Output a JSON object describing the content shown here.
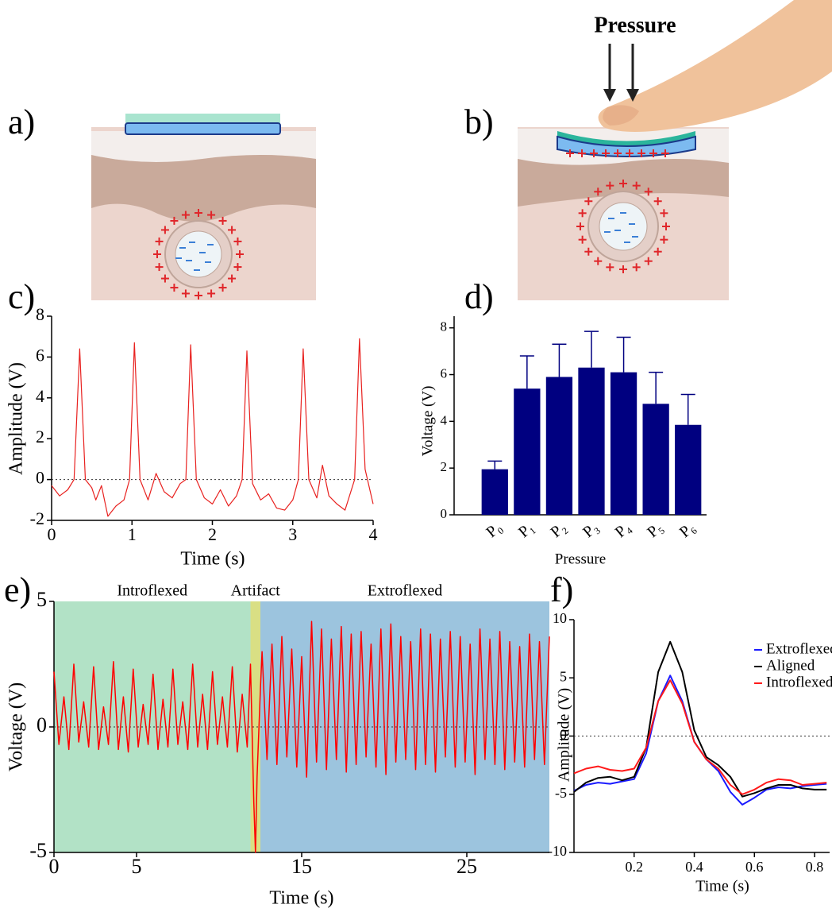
{
  "panels": [
    "a)",
    "b)",
    "c)",
    "d)",
    "e)",
    "f)"
  ],
  "diagram": {
    "force_label": "Pressure"
  },
  "chart_data": [
    {
      "type": "line",
      "xlabel": "Time  (s)",
      "ylabel": "Amplitude (V)",
      "x": [
        0,
        0.1,
        0.2,
        0.28,
        0.35,
        0.42,
        0.5,
        0.55,
        0.62,
        0.7,
        0.8,
        0.9,
        0.97,
        1.03,
        1.1,
        1.2,
        1.3,
        1.4,
        1.5,
        1.6,
        1.67,
        1.73,
        1.8,
        1.9,
        2.0,
        2.1,
        2.2,
        2.3,
        2.37,
        2.43,
        2.5,
        2.6,
        2.7,
        2.8,
        2.9,
        3.0,
        3.07,
        3.13,
        3.2,
        3.3,
        3.37,
        3.45,
        3.55,
        3.65,
        3.77,
        3.83,
        3.9,
        4.0
      ],
      "series": [
        {
          "color": "#e8211f",
          "values": [
            -0.3,
            -0.8,
            -0.5,
            0,
            6.4,
            0,
            -0.4,
            -1.0,
            -0.3,
            -1.8,
            -1.3,
            -1.0,
            0,
            6.7,
            0,
            -1.0,
            0.3,
            -0.6,
            -0.9,
            -0.2,
            0,
            6.6,
            0,
            -0.9,
            -1.2,
            -0.5,
            -1.3,
            -0.8,
            0,
            6.3,
            -0.2,
            -1.0,
            -0.7,
            -1.4,
            -1.5,
            -1.0,
            0,
            6.4,
            0,
            -0.9,
            0.7,
            -0.8,
            -1.2,
            -1.5,
            0,
            6.9,
            0.5,
            -1.2
          ]
        }
      ],
      "xlim": [
        0,
        4
      ],
      "xticks": [
        0,
        1,
        2,
        3,
        4
      ],
      "ylim": [
        -2,
        8
      ],
      "yticks": [
        -2,
        0,
        2,
        4,
        6,
        8
      ],
      "zero_line": true
    },
    {
      "type": "bar",
      "xlabel": "Pressure",
      "ylabel": "Voltage  (V)",
      "categories": [
        "P₀",
        "P₁",
        "P₂",
        "P₃",
        "P₄",
        "P₅",
        "P₆"
      ],
      "values": [
        1.95,
        5.4,
        5.9,
        6.3,
        6.1,
        4.75,
        3.85
      ],
      "errors": [
        0.35,
        1.4,
        1.4,
        1.55,
        1.5,
        1.35,
        1.3
      ],
      "color": "#000080",
      "ylim": [
        0,
        8.5
      ],
      "yticks": [
        0,
        2,
        4,
        6,
        8
      ],
      "xtick_rotation": -40
    },
    {
      "type": "line",
      "xlabel": "Time  (s)",
      "ylabel": "Voltage  (V)",
      "regions": [
        {
          "label": "Introflexed",
          "start": 0,
          "end": 11.9,
          "color": "#b2e2c6"
        },
        {
          "label": "Artifact",
          "start": 11.9,
          "end": 12.5,
          "color": "#d9df84"
        },
        {
          "label": "Extroflexed",
          "start": 12.5,
          "end": 30,
          "color": "#9cc4de"
        }
      ],
      "x": [
        0,
        0.3,
        0.6,
        0.9,
        1.2,
        1.5,
        1.8,
        2.1,
        2.4,
        2.7,
        3,
        3.3,
        3.6,
        3.9,
        4.2,
        4.5,
        4.8,
        5.1,
        5.4,
        5.7,
        6,
        6.3,
        6.6,
        6.9,
        7.2,
        7.5,
        7.8,
        8.1,
        8.4,
        8.7,
        9,
        9.3,
        9.6,
        9.9,
        10.2,
        10.5,
        10.8,
        11.1,
        11.4,
        11.7,
        11.9,
        12.1,
        12.2,
        12.3,
        12.5,
        12.6,
        12.9,
        13.2,
        13.5,
        13.8,
        14.1,
        14.4,
        14.7,
        15,
        15.3,
        15.6,
        15.9,
        16.2,
        16.5,
        16.8,
        17.1,
        17.4,
        17.7,
        18,
        18.3,
        18.6,
        18.9,
        19.2,
        19.5,
        19.8,
        20.1,
        20.4,
        20.7,
        21,
        21.3,
        21.6,
        21.9,
        22.2,
        22.5,
        22.8,
        23.1,
        23.4,
        23.7,
        24,
        24.3,
        24.6,
        24.9,
        25.2,
        25.5,
        25.8,
        26.1,
        26.4,
        26.7,
        27,
        27.3,
        27.6,
        27.9,
        28.2,
        28.5,
        28.8,
        29.1,
        29.4,
        29.7,
        30
      ],
      "series": [
        {
          "color": "#ff0000",
          "values": [
            2.2,
            -0.7,
            1.2,
            -0.9,
            2.5,
            -0.6,
            1.0,
            -0.8,
            2.4,
            -0.9,
            0.8,
            -0.7,
            2.6,
            -0.9,
            1.2,
            -1.0,
            2.3,
            -0.8,
            0.9,
            -0.7,
            2.1,
            -0.9,
            1.1,
            -0.8,
            2.3,
            -0.7,
            1.0,
            -0.9,
            2.5,
            -0.8,
            1.3,
            -0.9,
            2.2,
            -0.7,
            1.2,
            -0.8,
            2.4,
            -1.0,
            1.3,
            -0.8,
            2.5,
            -3.0,
            -5.0,
            -2.0,
            1.5,
            3.0,
            -1.3,
            3.3,
            -1.5,
            3.6,
            -1.2,
            3.1,
            -1.6,
            2.8,
            -2.0,
            4.2,
            -1.4,
            3.9,
            -1.7,
            3.5,
            -1.3,
            4.0,
            -1.8,
            3.7,
            -1.5,
            3.8,
            -1.2,
            3.3,
            -1.6,
            3.9,
            -1.9,
            4.1,
            -1.4,
            3.6,
            -1.3,
            3.4,
            -1.7,
            3.9,
            -1.5,
            3.7,
            -1.8,
            3.5,
            -1.2,
            3.8,
            -1.6,
            3.6,
            -1.4,
            3.3,
            -1.9,
            3.9,
            -1.3,
            3.5,
            -1.5,
            3.8,
            -1.7,
            3.4,
            -1.4,
            3.2,
            -1.6,
            3.7,
            -1.3,
            3.4,
            -1.5,
            3.6
          ]
        }
      ],
      "xlim": [
        0,
        30
      ],
      "xticks": [
        0,
        5,
        15,
        25
      ],
      "ylim": [
        -5,
        5
      ],
      "yticks": [
        -5,
        0,
        5
      ],
      "zero_line": true
    },
    {
      "type": "line",
      "xlabel": "Time  (s)",
      "ylabel": "Amplitude (V)",
      "x": [
        0,
        0.04,
        0.08,
        0.12,
        0.16,
        0.2,
        0.24,
        0.28,
        0.32,
        0.36,
        0.4,
        0.44,
        0.48,
        0.52,
        0.56,
        0.6,
        0.64,
        0.68,
        0.72,
        0.76,
        0.8,
        0.84
      ],
      "series": [
        {
          "name": "Extroflexed",
          "color": "#1a1aff",
          "values": [
            -4.7,
            -4.2,
            -4.0,
            -4.1,
            -3.9,
            -3.7,
            -1.5,
            3.0,
            5.2,
            3.0,
            -0.5,
            -2.0,
            -3.0,
            -4.8,
            -5.9,
            -5.3,
            -4.6,
            -4.4,
            -4.5,
            -4.3,
            -4.2,
            -4.1
          ]
        },
        {
          "name": "Aligned",
          "color": "#000000",
          "values": [
            -4.8,
            -4.0,
            -3.6,
            -3.5,
            -3.8,
            -3.5,
            -1.0,
            5.5,
            8.1,
            5.5,
            0.5,
            -1.8,
            -2.5,
            -3.5,
            -5.2,
            -4.9,
            -4.5,
            -4.2,
            -4.2,
            -4.5,
            -4.6,
            -4.6
          ]
        },
        {
          "name": "Introflexed",
          "color": "#ff1a1a",
          "values": [
            -3.2,
            -2.8,
            -2.6,
            -2.9,
            -3.0,
            -2.8,
            -1.0,
            3.0,
            4.8,
            2.8,
            -0.5,
            -2.0,
            -2.8,
            -4.2,
            -5.0,
            -4.6,
            -4.0,
            -3.7,
            -3.8,
            -4.2,
            -4.1,
            -4.0
          ]
        }
      ],
      "xlim": [
        0,
        0.85
      ],
      "xticks": [
        0.2,
        0.4,
        0.6,
        0.8
      ],
      "ylim": [
        -10,
        10
      ],
      "yticks": [
        -10,
        -5,
        0,
        5,
        10
      ],
      "zero_line": true,
      "legend": "upper right"
    }
  ]
}
